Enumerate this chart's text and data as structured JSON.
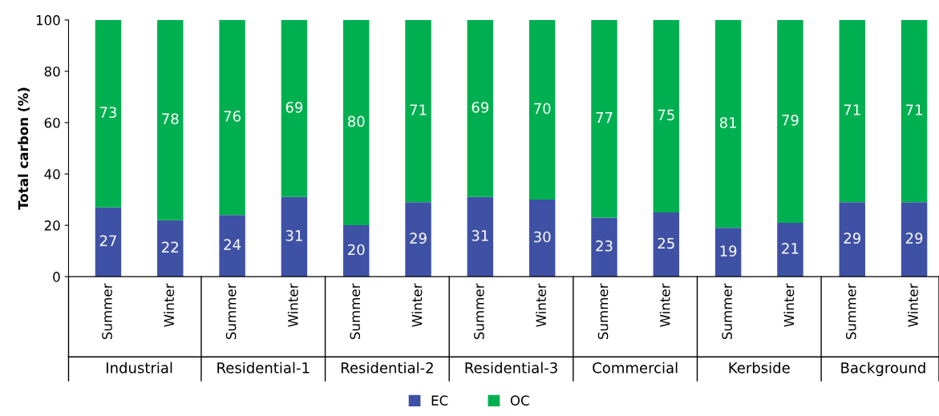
{
  "chart_data": {
    "type": "bar",
    "stacked": true,
    "ylabel": "Total carbon (%)",
    "categories": [
      "Summer",
      "Winter",
      "Summer",
      "Winter",
      "Summer",
      "Winter",
      "Summer",
      "Winter",
      "Summer",
      "Winter",
      "Summer",
      "Winter",
      "Summer",
      "Winter"
    ],
    "annotations": [
      "Industrial",
      "Residential-1",
      "Residential-2",
      "Residential-3",
      "Commercial",
      "Kerbside",
      "Background"
    ],
    "series": [
      {
        "name": "EC",
        "color": "#3f51a5",
        "values": [
          27,
          22,
          24,
          31,
          20,
          29,
          31,
          30,
          23,
          25,
          19,
          21,
          29,
          29
        ]
      },
      {
        "name": "OC",
        "color": "#00b050",
        "values": [
          73,
          78,
          76,
          69,
          80,
          71,
          69,
          70,
          77,
          75,
          81,
          79,
          71,
          71
        ]
      }
    ],
    "ylim": [
      0,
      100
    ],
    "yticks": [
      0,
      20,
      40,
      60,
      80,
      100
    ],
    "data_labels": true,
    "legend": "bottom",
    "grid": false
  }
}
